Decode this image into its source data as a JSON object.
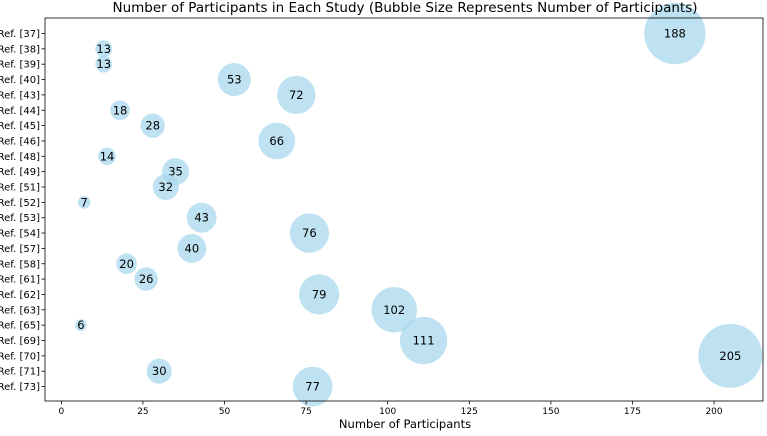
{
  "chart_data": {
    "type": "scatter",
    "title": "Number of Participants in Each Study (Bubble Size Represents Number of Participants)",
    "xlabel": "Number of Participants",
    "ylabel": "",
    "xlim": [
      -5,
      215
    ],
    "xticks": [
      0,
      25,
      50,
      75,
      100,
      125,
      150,
      175,
      200
    ],
    "bubble_color": "#a8d8ee",
    "grid": false,
    "legend": "none",
    "categories": [
      "Ref. [37]",
      "Ref. [38]",
      "Ref. [39]",
      "Ref. [40]",
      "Ref. [43]",
      "Ref. [44]",
      "Ref. [45]",
      "Ref. [46]",
      "Ref. [48]",
      "Ref. [49]",
      "Ref. [51]",
      "Ref. [52]",
      "Ref. [53]",
      "Ref. [54]",
      "Ref. [57]",
      "Ref. [58]",
      "Ref. [61]",
      "Ref. [62]",
      "Ref. [63]",
      "Ref. [65]",
      "Ref. [69]",
      "Ref. [70]",
      "Ref. [71]",
      "Ref. [73]"
    ],
    "values": [
      188,
      13,
      13,
      53,
      72,
      18,
      28,
      66,
      14,
      35,
      32,
      7,
      43,
      76,
      40,
      20,
      26,
      79,
      102,
      6,
      111,
      205,
      30,
      77
    ]
  }
}
